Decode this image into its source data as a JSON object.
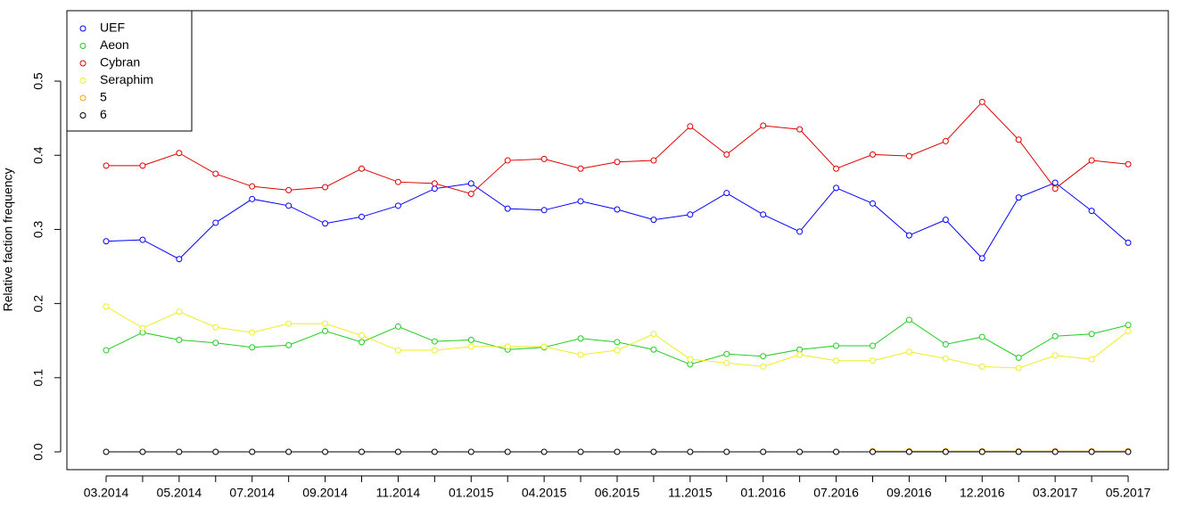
{
  "chart_data": {
    "type": "line",
    "y_label": "Relative faction frequency",
    "categories": [
      "03.2014",
      null,
      "05.2014",
      null,
      "07.2014",
      null,
      "09.2014",
      null,
      "11.2014",
      null,
      "01.2015",
      null,
      "04.2015",
      null,
      "06.2015",
      null,
      "11.2015",
      null,
      "01.2016",
      null,
      "07.2016",
      null,
      "09.2016",
      null,
      "12.2016",
      null,
      "03.2017",
      null,
      "05.2017"
    ],
    "ylim": [
      -0.024,
      0.595
    ],
    "yticks": [
      {
        "value": 0,
        "label": "0.0"
      },
      0.1,
      0.2,
      0.3,
      0.4,
      0.5
    ],
    "legend": "top-left",
    "series": [
      {
        "name": "UEF",
        "color": "#0000ff",
        "values": [
          0.284,
          0.286,
          0.26,
          0.309,
          0.341,
          0.332,
          0.308,
          0.317,
          0.332,
          0.355,
          0.362,
          0.328,
          0.326,
          0.338,
          0.327,
          0.313,
          0.32,
          0.349,
          0.32,
          0.297,
          0.356,
          0.335,
          0.292,
          0.313,
          0.261,
          0.343,
          0.363,
          0.325,
          0.282
        ]
      },
      {
        "name": "Aeon",
        "color": "#22cc22",
        "values": [
          0.137,
          0.161,
          0.151,
          0.147,
          0.141,
          0.144,
          0.163,
          0.148,
          0.169,
          0.149,
          0.151,
          0.138,
          0.141,
          0.153,
          0.148,
          0.138,
          0.118,
          0.132,
          0.129,
          0.138,
          0.143,
          0.143,
          0.178,
          0.145,
          0.155,
          0.127,
          0.156,
          0.159,
          0.171
        ]
      },
      {
        "name": "Cybran",
        "color": "#dd0000",
        "values": [
          0.386,
          0.386,
          0.403,
          0.375,
          0.358,
          0.353,
          0.357,
          0.382,
          0.364,
          0.362,
          0.348,
          0.393,
          0.395,
          0.382,
          0.391,
          0.393,
          0.439,
          0.401,
          0.44,
          0.435,
          0.382,
          0.401,
          0.399,
          0.419,
          0.472,
          0.421,
          0.355,
          0.393,
          0.388
        ]
      },
      {
        "name": "Seraphim",
        "color": "#eeee22",
        "values": [
          0.196,
          0.167,
          0.189,
          0.168,
          0.161,
          0.173,
          0.173,
          0.157,
          0.137,
          0.137,
          0.142,
          0.142,
          0.142,
          0.131,
          0.137,
          0.159,
          0.125,
          0.12,
          0.115,
          0.131,
          0.123,
          0.123,
          0.135,
          0.126,
          0.115,
          0.113,
          0.13,
          0.125,
          0.163
        ]
      },
      {
        "name": "5",
        "color": "#ffa500",
        "values": [
          null,
          null,
          null,
          null,
          null,
          null,
          null,
          null,
          null,
          null,
          null,
          null,
          null,
          null,
          null,
          null,
          null,
          null,
          null,
          null,
          null,
          0.001,
          0.001,
          0.001,
          0.001,
          0.001,
          0.001,
          0.001,
          0.001
        ]
      },
      {
        "name": "6",
        "color": "#000000",
        "values": [
          0,
          0,
          0,
          0,
          0,
          0,
          0,
          0,
          0,
          0,
          0,
          0,
          0,
          0,
          0,
          0,
          0,
          0,
          0,
          0,
          0,
          0,
          0,
          0,
          0,
          0,
          0,
          0,
          0
        ]
      }
    ]
  }
}
